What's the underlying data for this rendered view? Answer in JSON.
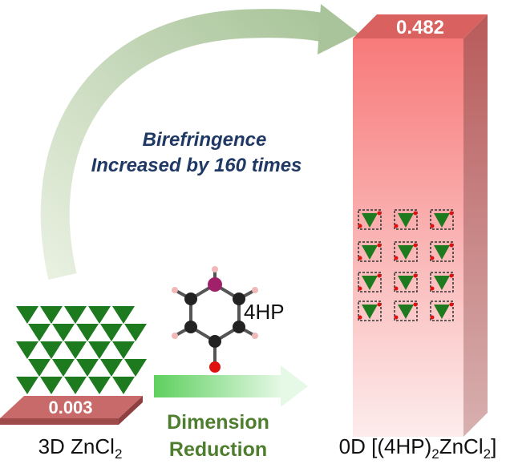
{
  "bar_label_large": "0.482",
  "bar_label_small": "0.003",
  "headline": {
    "line1": "Birefringence",
    "line2": "Increased by 160 times"
  },
  "molecule_label": "4HP",
  "process": {
    "line1": "Dimension",
    "line2": "Reduction"
  },
  "left_label": {
    "text": "3D ZnCl",
    "sub": "2"
  },
  "right_label": {
    "parts": [
      "0D [(4HP)",
      "2",
      "ZnCl",
      "2",
      "]"
    ]
  }
}
